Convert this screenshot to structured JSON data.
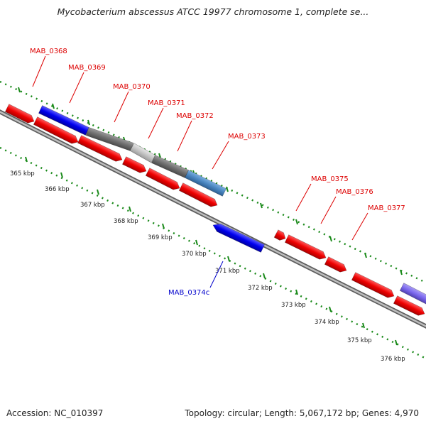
{
  "title": "Mycobacterium abscessus ATCC 19977 chromosome 1, complete se...",
  "footer": {
    "accession": "Accession: NC_010397",
    "stats": "Topology: circular; Length: 5,067,172 bp; Genes: 4,970"
  },
  "colors": {
    "forward_gene": "#ff0000",
    "reverse_gene": "#0000ff",
    "highlight_gene": "#0000ee",
    "gray_dark": "#707070",
    "gray_light": "#c8c8c8",
    "steel_blue": "#4a8ac4",
    "purple": "#7b68ee",
    "backbone": "#8a8a8a",
    "tick_green": "#1a8a1a",
    "forward_label": "#dd0000",
    "reverse_label": "#0000cc"
  },
  "kbp_labels": [
    "365 kbp",
    "366 kbp",
    "367 kbp",
    "368 kbp",
    "369 kbp",
    "370 kbp",
    "371 kbp",
    "372 kbp",
    "373 kbp",
    "374 kbp",
    "375 kbp",
    "376 kbp"
  ],
  "gene_labels_forward": [
    "MAB_0368",
    "MAB_0369",
    "MAB_0370",
    "MAB_0371",
    "MAB_0372",
    "MAB_0373",
    "MAB_0375",
    "MAB_0376",
    "MAB_0377"
  ],
  "gene_labels_reverse": [
    "MAB_0374c"
  ]
}
